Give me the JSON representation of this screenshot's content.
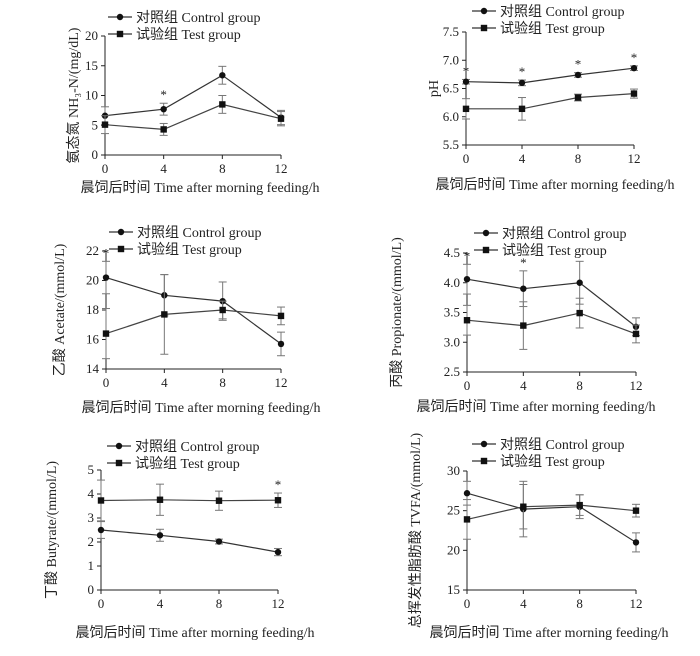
{
  "chart_data": [
    {
      "type": "line",
      "xlabel": "晨饲后时间 Time after morning feeding/h",
      "ylabel": "氨态氮 NH₃-N/(mg/dL)",
      "x": [
        0,
        4,
        8,
        12
      ],
      "xlim": [
        0,
        12
      ],
      "ylim": [
        0,
        20
      ],
      "yticks": [
        0,
        5,
        10,
        15,
        20
      ],
      "legend_position": "top-left",
      "series": [
        {
          "name": "对照组 Control group",
          "marker": "circle",
          "values": [
            6.6,
            7.7,
            13.4,
            6.3
          ],
          "errors": [
            1.5,
            1.0,
            1.5,
            1.2
          ]
        },
        {
          "name": "试验组 Test group",
          "marker": "square",
          "values": [
            5.1,
            4.3,
            8.5,
            6.1
          ],
          "errors": [
            1.5,
            1.0,
            1.5,
            1.2
          ]
        }
      ],
      "significance": [
        {
          "x": 4,
          "label": "*"
        }
      ]
    },
    {
      "type": "line",
      "xlabel": "晨饲后时间 Time after morning feeding/h",
      "ylabel": "pH",
      "x": [
        0,
        4,
        8,
        12
      ],
      "xlim": [
        0,
        12
      ],
      "ylim": [
        5.5,
        7.5
      ],
      "yticks": [
        "5.5",
        "6.0",
        "6.5",
        "7.0",
        "7.5"
      ],
      "legend_position": "top-left",
      "series": [
        {
          "name": "对照组 Control group",
          "marker": "circle",
          "values": [
            6.62,
            6.6,
            6.74,
            6.86
          ],
          "errors": [
            0.04,
            0.05,
            0.04,
            0.04
          ]
        },
        {
          "name": "试验组 Test group",
          "marker": "square",
          "values": [
            6.14,
            6.14,
            6.34,
            6.41
          ],
          "errors": [
            0.18,
            0.2,
            0.06,
            0.08
          ]
        }
      ],
      "significance": [
        {
          "x": 0,
          "label": "*"
        },
        {
          "x": 4,
          "label": "*"
        },
        {
          "x": 8,
          "label": "*"
        },
        {
          "x": 12,
          "label": "*"
        }
      ]
    },
    {
      "type": "line",
      "xlabel": "晨饲后时间 Time after morning feeding/h",
      "ylabel": "乙酸 Acetate/(mmol/L)",
      "x": [
        0,
        4,
        8,
        12
      ],
      "xlim": [
        0,
        12
      ],
      "ylim": [
        14,
        22
      ],
      "yticks": [
        14,
        16,
        18,
        20,
        22
      ],
      "legend_position": "top-left",
      "series": [
        {
          "name": "对照组 Control group",
          "marker": "circle",
          "values": [
            20.2,
            19.0,
            18.6,
            15.7
          ],
          "errors": [
            1.1,
            1.4,
            1.3,
            0.8
          ]
        },
        {
          "name": "试验组 Test group",
          "marker": "square",
          "values": [
            16.4,
            17.7,
            18.0,
            17.6
          ],
          "errors": [
            1.7,
            2.7,
            0.6,
            0.6
          ]
        }
      ],
      "significance": [
        {
          "x": 0,
          "label": "*"
        }
      ]
    },
    {
      "type": "line",
      "xlabel": "晨饲后时间 Time after morning feeding/h",
      "ylabel": "丙酸 Propionate/(mmol/L)",
      "x": [
        0,
        4,
        8,
        12
      ],
      "xlim": [
        0,
        12
      ],
      "ylim": [
        2.5,
        4.5
      ],
      "yticks": [
        "2.5",
        "3.0",
        "3.5",
        "4.0",
        "4.5"
      ],
      "legend_position": "top-left",
      "series": [
        {
          "name": "对照组 Control group",
          "marker": "circle",
          "values": [
            4.06,
            3.9,
            4.0,
            3.26
          ],
          "errors": [
            0.25,
            0.3,
            0.36,
            0.15
          ]
        },
        {
          "name": "试验组 Test group",
          "marker": "square",
          "values": [
            3.37,
            3.28,
            3.49,
            3.14
          ],
          "errors": [
            0.25,
            0.4,
            0.25,
            0.15
          ]
        }
      ],
      "significance": [
        {
          "x": 0,
          "label": "*"
        },
        {
          "x": 4,
          "label": "*"
        }
      ]
    },
    {
      "type": "line",
      "xlabel": "晨饲后时间 Time after morning feeding/h",
      "ylabel": "丁酸 Butyrate/(mmol/L)",
      "x": [
        0,
        4,
        8,
        12
      ],
      "xlim": [
        0,
        12
      ],
      "ylim": [
        0,
        5
      ],
      "yticks": [
        0,
        1,
        2,
        3,
        4,
        5
      ],
      "legend_position": "top-left",
      "series": [
        {
          "name": "对照组 Control group",
          "marker": "circle",
          "values": [
            2.5,
            2.28,
            2.02,
            1.58
          ],
          "errors": [
            0.35,
            0.25,
            0.1,
            0.15
          ]
        },
        {
          "name": "试验组 Test group",
          "marker": "square",
          "values": [
            3.73,
            3.76,
            3.72,
            3.74
          ],
          "errors": [
            0.85,
            0.65,
            0.4,
            0.3
          ]
        }
      ],
      "significance": [
        {
          "x": 12,
          "label": "*"
        }
      ]
    },
    {
      "type": "line",
      "xlabel": "晨饲后时间 Time after morning feeding/h",
      "ylabel": "总挥发性脂肪酸 TVFA/(mmol/L)",
      "x": [
        0,
        4,
        8,
        12
      ],
      "xlim": [
        0,
        12
      ],
      "ylim": [
        15,
        30
      ],
      "yticks": [
        15,
        20,
        25,
        30
      ],
      "legend_position": "top-left",
      "series": [
        {
          "name": "对照组 Control group",
          "marker": "circle",
          "values": [
            27.2,
            25.2,
            25.5,
            21.0
          ],
          "errors": [
            1.5,
            3.5,
            1.5,
            1.2
          ]
        },
        {
          "name": "试验组 Test group",
          "marker": "square",
          "values": [
            23.9,
            25.5,
            25.7,
            25.0
          ],
          "errors": [
            2.5,
            2.8,
            1.3,
            0.8
          ]
        }
      ],
      "significance": []
    }
  ]
}
